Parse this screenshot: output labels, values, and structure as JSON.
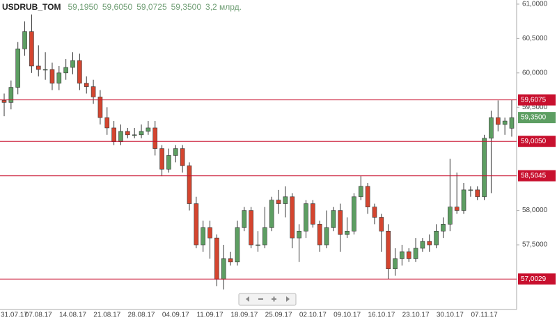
{
  "chart_data": {
    "type": "candlestick",
    "title": "USDRUB_TOM",
    "ohlc_labels": [
      "59,1950",
      "59,6050",
      "59,0725",
      "59,3500"
    ],
    "volume_label": "3,2 млрд.",
    "categories": [
      "31.07.17",
      null,
      null,
      null,
      null,
      "07.08.17",
      null,
      null,
      null,
      null,
      "14.08.17",
      null,
      null,
      null,
      null,
      "21.08.17",
      null,
      null,
      null,
      null,
      "28.08.17",
      null,
      null,
      null,
      null,
      "04.09.17",
      null,
      null,
      null,
      null,
      "11.09.17",
      null,
      null,
      null,
      null,
      "18.09.17",
      null,
      null,
      null,
      null,
      "25.09.17",
      null,
      null,
      null,
      null,
      "02.10.17",
      null,
      null,
      null,
      null,
      "09.10.17",
      null,
      null,
      null,
      null,
      "16.10.17",
      null,
      null,
      null,
      null,
      "23.10.17",
      null,
      null,
      null,
      null,
      "30.10.17",
      null,
      null,
      null,
      null,
      "07.11.17",
      null,
      null,
      null,
      null
    ],
    "open": [
      59.6,
      59.57,
      59.79,
      60.35,
      60.6,
      60.1,
      60.05,
      60.05,
      59.85,
      60.0,
      60.08,
      60.18,
      59.85,
      59.8,
      59.65,
      59.35,
      59.2,
      59.0,
      59.15,
      59.1,
      59.1,
      59.15,
      59.2,
      58.9,
      58.6,
      58.8,
      58.9,
      58.65,
      58.1,
      57.5,
      57.75,
      57.6,
      57.0,
      57.3,
      57.25,
      57.75,
      58.0,
      57.5,
      57.5,
      57.75,
      58.15,
      58.1,
      58.2,
      57.6,
      57.7,
      58.1,
      57.8,
      57.5,
      57.75,
      58.0,
      57.65,
      57.7,
      58.2,
      58.35,
      58.05,
      57.9,
      57.7,
      57.15,
      57.3,
      57.4,
      57.3,
      57.45,
      57.55,
      57.5,
      57.7,
      57.8,
      58.05,
      58.0,
      58.3,
      58.3,
      58.2,
      59.05,
      59.35,
      59.25,
      59.195
    ],
    "high": [
      59.7,
      59.89,
      60.45,
      60.75,
      60.85,
      60.4,
      60.3,
      60.15,
      60.1,
      60.2,
      60.3,
      60.28,
      59.95,
      59.9,
      59.75,
      59.5,
      59.3,
      59.25,
      59.2,
      59.2,
      59.25,
      59.3,
      59.3,
      58.95,
      58.9,
      58.95,
      58.95,
      58.7,
      58.2,
      57.85,
      57.85,
      57.65,
      57.5,
      57.4,
      57.85,
      58.05,
      58.05,
      57.7,
      58.05,
      58.2,
      58.3,
      58.35,
      58.25,
      57.8,
      58.15,
      58.15,
      57.85,
      58.0,
      58.05,
      58.1,
      57.9,
      58.25,
      58.5,
      58.4,
      58.1,
      57.95,
      57.8,
      57.45,
      57.5,
      57.45,
      57.6,
      57.6,
      57.65,
      57.8,
      57.9,
      58.75,
      58.55,
      58.4,
      58.35,
      58.35,
      59.1,
      59.45,
      59.6,
      59.35,
      59.605
    ],
    "low": [
      59.37,
      59.47,
      59.69,
      60.25,
      60.0,
      59.95,
      59.9,
      59.75,
      59.75,
      59.9,
      59.98,
      59.75,
      59.7,
      59.55,
      59.25,
      59.1,
      58.95,
      58.95,
      59.05,
      59.05,
      59.05,
      59.1,
      58.8,
      58.5,
      58.55,
      58.7,
      58.55,
      58.0,
      57.45,
      57.4,
      57.3,
      56.9,
      56.85,
      57.2,
      57.2,
      57.7,
      57.45,
      57.4,
      57.45,
      57.7,
      57.95,
      57.9,
      57.45,
      57.25,
      57.6,
      57.75,
      57.4,
      57.45,
      57.7,
      57.4,
      57.6,
      57.65,
      58.15,
      57.95,
      57.8,
      57.4,
      57.0,
      57.05,
      57.2,
      57.25,
      57.25,
      57.4,
      57.4,
      57.45,
      57.6,
      57.7,
      57.95,
      57.95,
      58.2,
      58.15,
      58.15,
      58.25,
      59.15,
      59.1,
      59.0725
    ],
    "close": [
      59.57,
      59.79,
      60.35,
      60.6,
      60.1,
      60.05,
      60.05,
      59.85,
      60.0,
      60.08,
      60.18,
      59.85,
      59.8,
      59.65,
      59.35,
      59.2,
      59.0,
      59.15,
      59.1,
      59.1,
      59.15,
      59.2,
      58.9,
      58.6,
      58.8,
      58.9,
      58.65,
      58.1,
      57.5,
      57.75,
      57.6,
      57.0,
      57.3,
      57.25,
      57.75,
      58.0,
      57.5,
      57.5,
      57.75,
      58.15,
      58.1,
      58.2,
      57.6,
      57.7,
      58.1,
      57.8,
      57.5,
      57.75,
      58.0,
      57.65,
      57.7,
      58.2,
      58.35,
      58.05,
      57.9,
      57.7,
      57.15,
      57.3,
      57.4,
      57.3,
      57.45,
      57.55,
      57.5,
      57.7,
      57.8,
      58.05,
      58.0,
      58.3,
      58.3,
      58.2,
      59.05,
      59.35,
      59.25,
      59.3,
      59.35
    ],
    "up_color": "#5d9e62",
    "down_color": "#d4452f",
    "ylim": [
      56.56,
      61.06
    ],
    "yticks": [
      {
        "value": 61,
        "label": "61,0000"
      },
      {
        "value": 60.5,
        "label": "60,5000"
      },
      {
        "value": 60,
        "label": "60,0000"
      },
      {
        "value": 59.5,
        "label": "59,5000"
      },
      {
        "value": 58,
        "label": "58,0000"
      },
      {
        "value": 57.5,
        "label": "57,5000"
      }
    ],
    "levels": [
      {
        "value": 59.6075,
        "label": "59,6075"
      },
      {
        "value": 59.005,
        "label": "59,0050"
      },
      {
        "value": 58.5045,
        "label": "58,5045"
      },
      {
        "value": 57.0029,
        "label": "57,0029"
      }
    ],
    "level_color": "#c8102e",
    "last_price": {
      "value": 59.35,
      "label": "59,3500"
    },
    "last_price_color": "#5d9e62",
    "grid": false
  }
}
